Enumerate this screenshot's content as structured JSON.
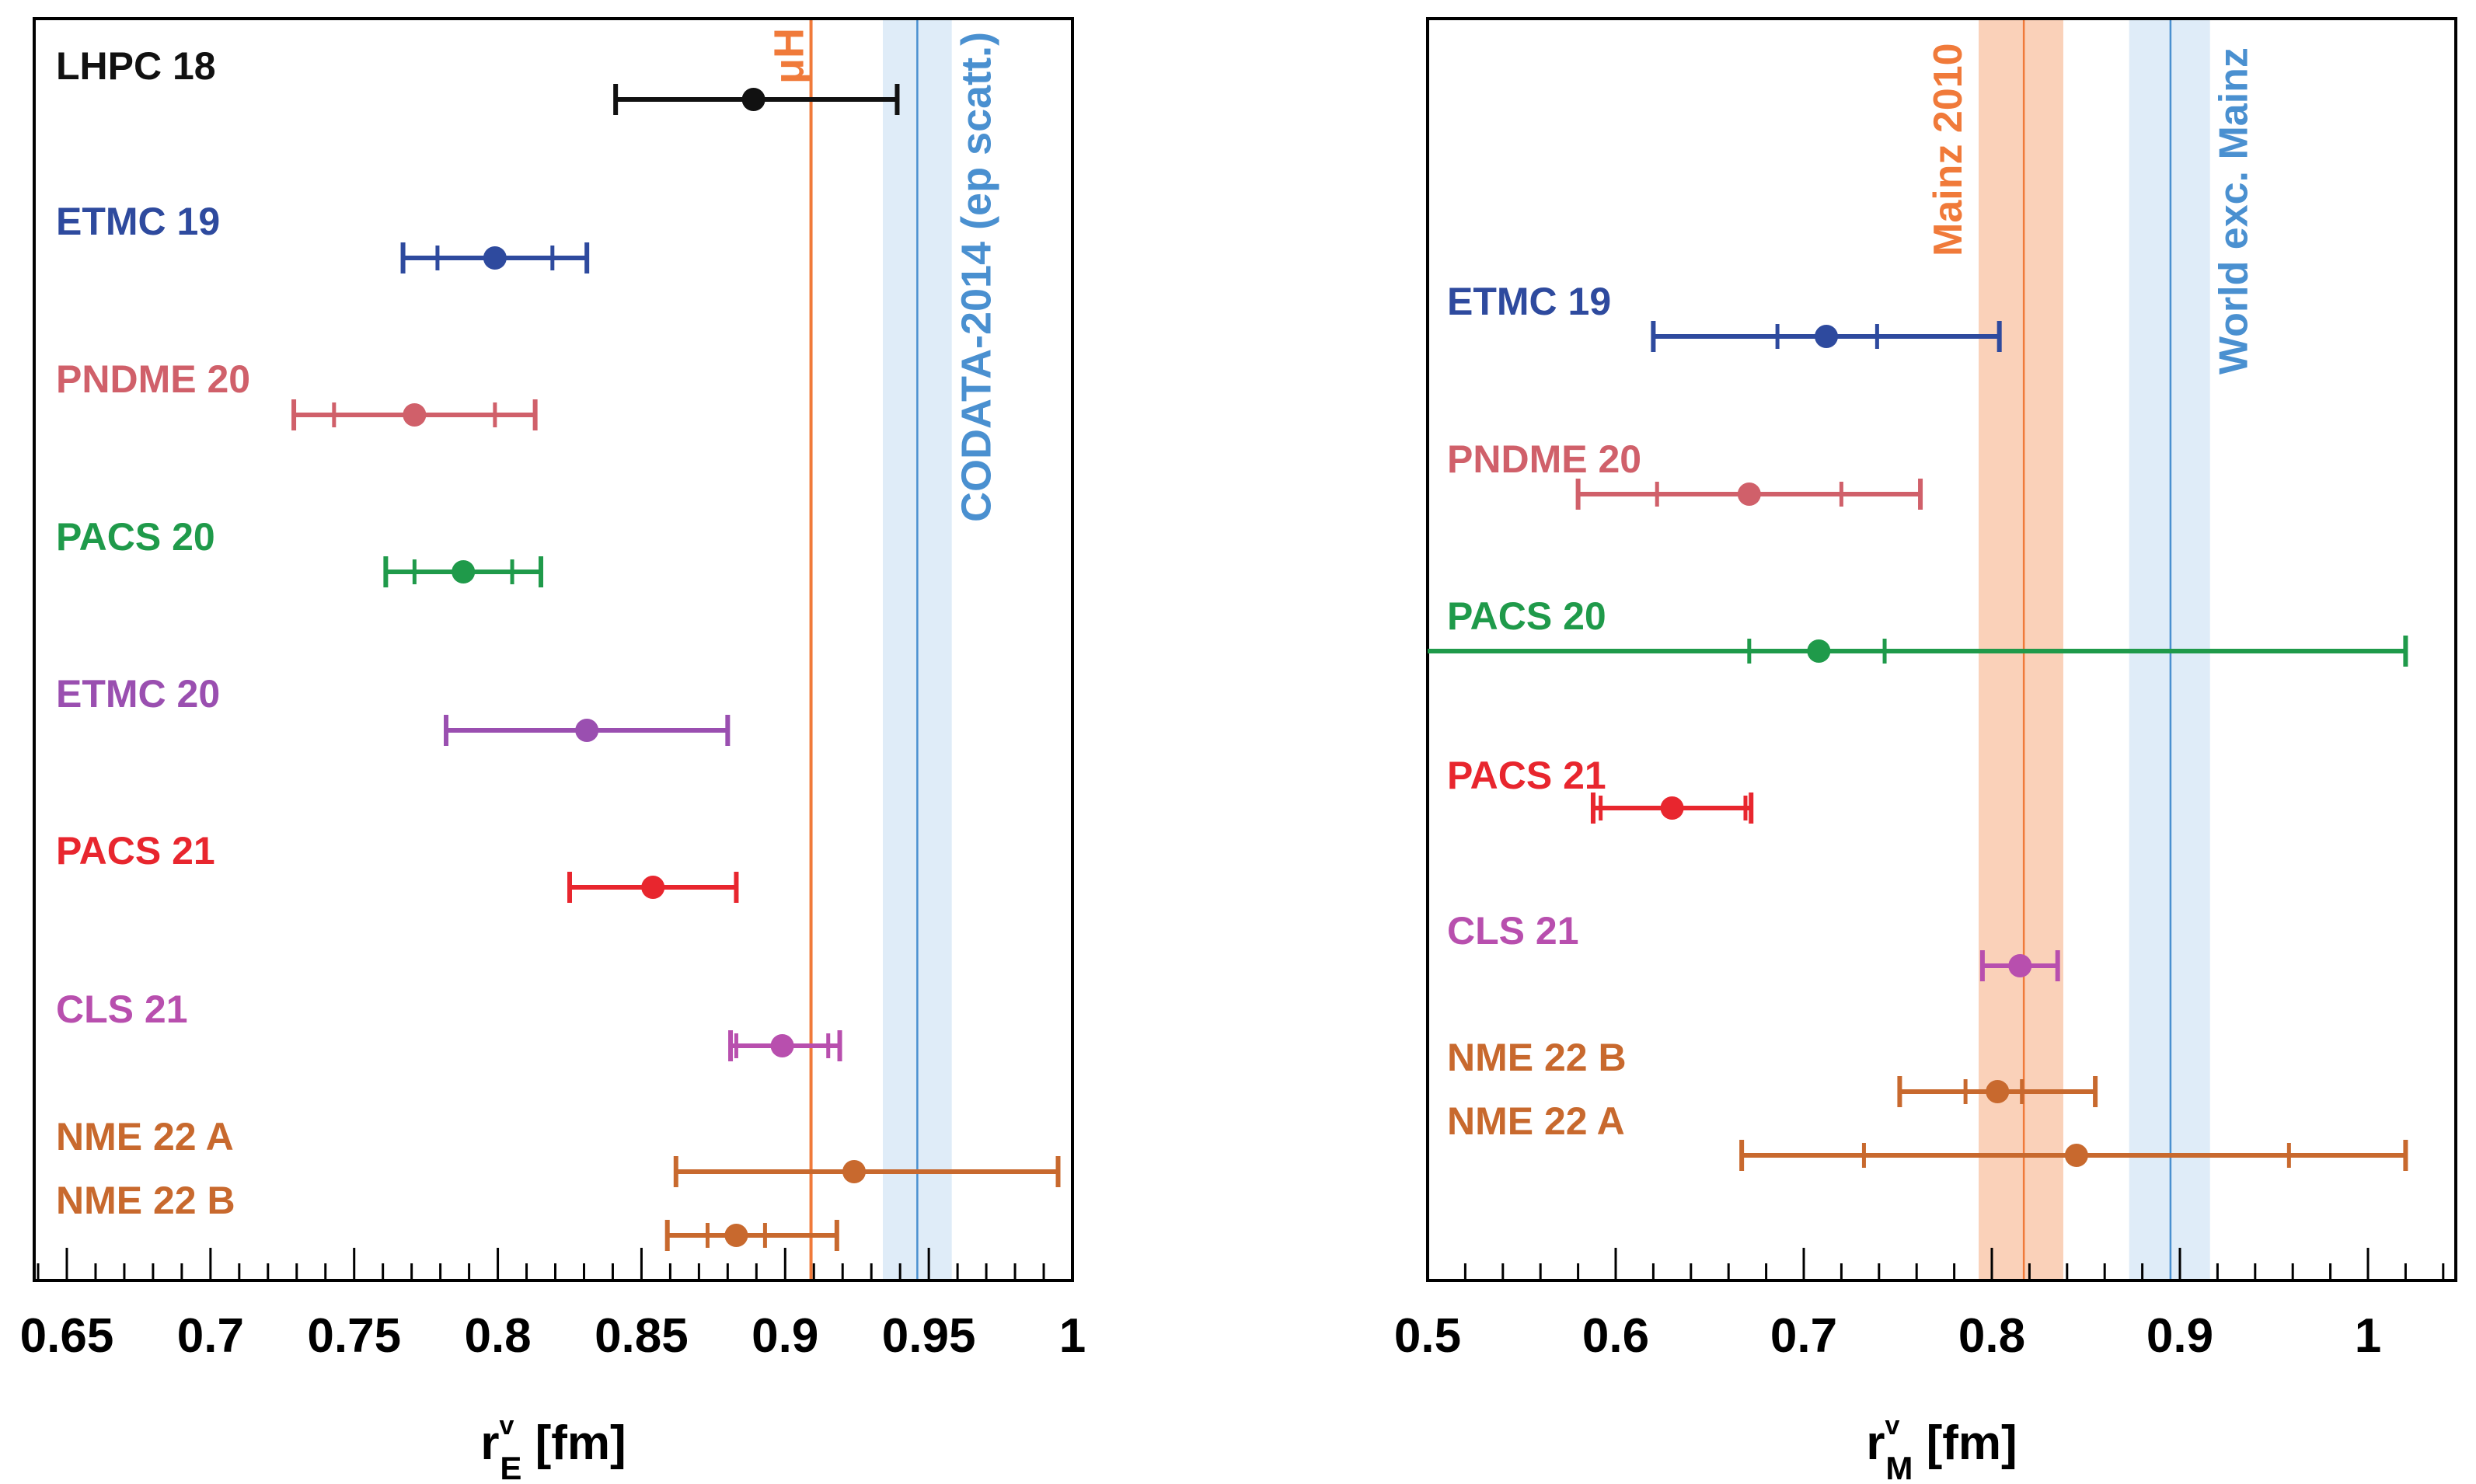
{
  "colors": {
    "black": "#111111",
    "blue": "#2e4a9e",
    "salmon": "#d0606a",
    "green": "#1f9a4a",
    "purple": "#9a4fb0",
    "red": "#e8262e",
    "pink": "#b84fae",
    "brown": "#c8692e",
    "orange": "#f07a3a",
    "orange_band": "#f9c9ad",
    "lightblue": "#4a90d0",
    "lightblue_band": "#d9e9f7"
  },
  "chart_data": [
    {
      "type": "forest",
      "title": "",
      "xlabel_main": "r",
      "xlabel_sup": "v",
      "xlabel_sub": "E",
      "xlabel_unit": " [fm]",
      "xlim": [
        0.64,
        1.0
      ],
      "xticks": [
        0.65,
        0.7,
        0.75,
        0.8,
        0.85,
        0.9,
        0.95,
        1
      ],
      "xtick_labels": [
        "0.65",
        "0.7",
        "0.75",
        "0.8",
        "0.85",
        "0.9",
        "0.95",
        "1"
      ],
      "bands": [
        {
          "label": "CODATA-2014 (ep scatt.)",
          "center": 0.946,
          "low": 0.934,
          "high": 0.958,
          "color": "lightblue"
        }
      ],
      "lines": [
        {
          "label": "μH",
          "value": 0.909,
          "color": "orange"
        }
      ],
      "series": [
        {
          "name": "LHPC 18",
          "label_row": 0,
          "color": "black",
          "central": 0.889,
          "stat": [
            0.889,
            0.889
          ],
          "total": [
            0.841,
            0.939
          ],
          "labels_below": false
        },
        {
          "name": "ETMC 19",
          "label_row": 1,
          "color": "blue",
          "central": 0.799,
          "stat": [
            0.779,
            0.819
          ],
          "total": [
            0.767,
            0.831
          ]
        },
        {
          "name": "PNDME 20",
          "label_row": 2,
          "color": "salmon",
          "central": 0.771,
          "stat": [
            0.743,
            0.799
          ],
          "total": [
            0.729,
            0.813
          ]
        },
        {
          "name": "PACS 20",
          "label_row": 3,
          "color": "green",
          "central": 0.788,
          "stat": [
            0.771,
            0.805
          ],
          "total": [
            0.761,
            0.815
          ]
        },
        {
          "name": "ETMC 20",
          "label_row": 4,
          "color": "purple",
          "central": 0.831,
          "stat": [
            0.831,
            0.831
          ],
          "total": [
            0.782,
            0.88
          ]
        },
        {
          "name": "PACS 21",
          "label_row": 5,
          "color": "red",
          "central": 0.854,
          "stat": [
            0.854,
            0.854
          ],
          "total": [
            0.825,
            0.883
          ]
        },
        {
          "name": "CLS 21",
          "label_row": 6,
          "color": "pink",
          "central": 0.899,
          "stat": [
            0.883,
            0.915
          ],
          "total": [
            0.881,
            0.919
          ]
        },
        {
          "name": "NME 22 A",
          "label_row": 7,
          "color": "brown",
          "central": 0.924,
          "stat": [
            0.924,
            0.924
          ],
          "total": [
            0.862,
            0.995
          ]
        },
        {
          "name": "NME 22 B",
          "label_row": 8,
          "color": "brown",
          "central": 0.883,
          "stat": [
            0.873,
            0.893
          ],
          "total": [
            0.859,
            0.918
          ]
        }
      ]
    },
    {
      "type": "forest",
      "title": "",
      "xlabel_main": "r",
      "xlabel_sup": "v",
      "xlabel_sub": "M",
      "xlabel_unit": " [fm]",
      "xlim": [
        0.5,
        1.05
      ],
      "xticks": [
        0.5,
        0.6,
        0.7,
        0.8,
        0.9,
        1
      ],
      "xtick_labels": [
        "0.5",
        "0.6",
        "0.7",
        "0.8",
        "0.9",
        "1"
      ],
      "bands": [
        {
          "label": "Mainz 2010",
          "center": 0.817,
          "low": 0.793,
          "high": 0.838,
          "color": "orange"
        },
        {
          "label": "World exc. Mainz",
          "center": 0.895,
          "low": 0.873,
          "high": 0.916,
          "color": "lightblue"
        }
      ],
      "lines": [],
      "series": [
        {
          "name": "ETMC 19",
          "color": "blue",
          "central": 0.712,
          "stat": [
            0.686,
            0.739
          ],
          "total": [
            0.62,
            0.804
          ]
        },
        {
          "name": "PNDME 20",
          "color": "salmon",
          "central": 0.671,
          "stat": [
            0.622,
            0.72
          ],
          "total": [
            0.58,
            0.762
          ]
        },
        {
          "name": "PACS 20",
          "color": "green",
          "central": 0.708,
          "stat": [
            0.671,
            0.743
          ],
          "total": [
            0.5,
            1.02
          ]
        },
        {
          "name": "PACS 21",
          "color": "red",
          "central": 0.63,
          "stat": [
            0.592,
            0.669
          ],
          "total": [
            0.588,
            0.672
          ]
        },
        {
          "name": "CLS 21",
          "color": "pink",
          "central": 0.815,
          "stat": [
            0.815,
            0.815
          ],
          "total": [
            0.795,
            0.835
          ]
        },
        {
          "name": "NME 22 B",
          "color": "brown",
          "central": 0.803,
          "stat": [
            0.786,
            0.816
          ],
          "total": [
            0.751,
            0.855
          ]
        },
        {
          "name": "NME 22 A",
          "color": "brown",
          "central": 0.845,
          "stat": [
            0.732,
            0.958
          ],
          "total": [
            0.667,
            1.02
          ]
        }
      ]
    }
  ]
}
